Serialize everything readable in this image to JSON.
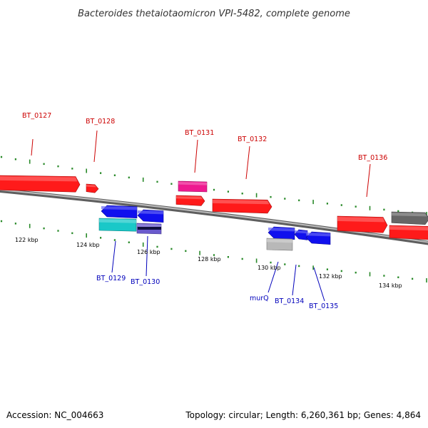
{
  "title": "Bacteroides thetaiotaomicron VPI-5482, complete genome",
  "footer": {
    "accession": "Accession: NC_004663",
    "summary": "Topology: circular; Length: 6,260,361 bp; Genes: 4,864"
  },
  "colors": {
    "forward_label": "#cc0000",
    "reverse_label": "#0000bb",
    "tick": "#2a8a2a",
    "backbone": "#7a7a7a"
  },
  "scale": {
    "unit": "kbp",
    "labels": [
      "122 kbp",
      "124 kbp",
      "126 kbp",
      "128 kbp",
      "130 kbp",
      "132 kbp",
      "134 kbp"
    ]
  },
  "gene_labels": {
    "forward": [
      "BT_0127",
      "BT_0128",
      "BT_0131",
      "BT_0132",
      "BT_0136"
    ],
    "reverse": [
      "BT_0129",
      "BT_0130",
      "murQ",
      "BT_0134",
      "BT_0135"
    ]
  },
  "features": {
    "forward": [
      {
        "color": "#ff1a1a",
        "direction": "right",
        "label": "BT_0127"
      },
      {
        "color": "#ff1a1a",
        "direction": "right",
        "label": "BT_0128"
      },
      {
        "color": "#ee1a90",
        "direction": "none",
        "label": "BT_0131"
      },
      {
        "color": "#ff1a1a",
        "direction": "right",
        "label": ""
      },
      {
        "color": "#ff1a1a",
        "direction": "right",
        "label": "BT_0132"
      },
      {
        "color": "#ff1a1a",
        "direction": "right",
        "label": "BT_0136"
      },
      {
        "color": "#666666",
        "direction": "right",
        "label": ""
      },
      {
        "color": "#ff1a1a",
        "direction": "right",
        "label": ""
      }
    ],
    "reverse": [
      {
        "color": "#1010ee",
        "direction": "left",
        "label": ""
      },
      {
        "color": "#1010ee",
        "direction": "left",
        "label": ""
      },
      {
        "color": "#1ac8c8",
        "direction": "none",
        "label": "BT_0129"
      },
      {
        "color": "#6a5acd",
        "direction": "none",
        "label": "BT_0130"
      },
      {
        "color": "#1010ee",
        "direction": "left",
        "label": ""
      },
      {
        "color": "#1010ee",
        "direction": "left",
        "label": "BT_0134"
      },
      {
        "color": "#1010ee",
        "direction": "left",
        "label": "BT_0135"
      },
      {
        "color": "#b8b8b8",
        "direction": "none",
        "label": "murQ"
      }
    ]
  }
}
